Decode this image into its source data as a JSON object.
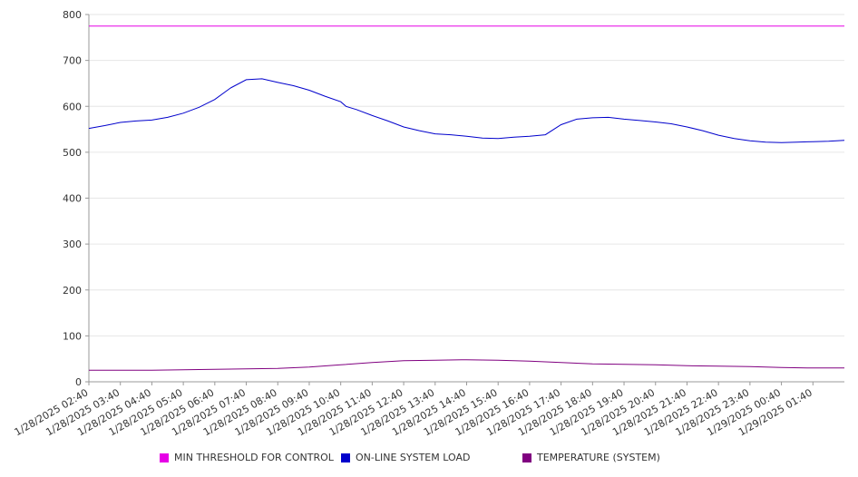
{
  "chart_data": {
    "type": "line",
    "ylim": [
      0,
      800
    ],
    "yticks": [
      0,
      100,
      200,
      300,
      400,
      500,
      600,
      700,
      800
    ],
    "x_start": "1/28/2025 02:40",
    "x_end": "1/29/2025 02:40",
    "xticks": [
      "1/28/2025 02:40",
      "1/28/2025 03:40",
      "1/28/2025 04:40",
      "1/28/2025 05:40",
      "1/28/2025 06:40",
      "1/28/2025 07:40",
      "1/28/2025 08:40",
      "1/28/2025 09:40",
      "1/28/2025 10:40",
      "1/28/2025 11:40",
      "1/28/2025 12:40",
      "1/28/2025 13:40",
      "1/28/2025 14:40",
      "1/28/2025 15:40",
      "1/28/2025 16:40",
      "1/28/2025 17:40",
      "1/28/2025 18:40",
      "1/28/2025 19:40",
      "1/28/2025 20:40",
      "1/28/2025 21:40",
      "1/28/2025 22:40",
      "1/28/2025 23:40",
      "1/29/2025 00:40",
      "1/29/2025 01:40"
    ],
    "grid": true,
    "legend_position": "bottom",
    "series": [
      {
        "name": "MIN THRESHOLD FOR CONTROL",
        "color": "#e600e6",
        "x": [
          "1/28/2025 02:40",
          "1/29/2025 02:40"
        ],
        "y": [
          775,
          775
        ]
      },
      {
        "name": "ON-LINE SYSTEM LOAD",
        "color": "#0000cc",
        "x": [
          "1/28/2025 02:40",
          "1/28/2025 03:10",
          "1/28/2025 03:40",
          "1/28/2025 04:10",
          "1/28/2025 04:40",
          "1/28/2025 05:10",
          "1/28/2025 05:40",
          "1/28/2025 06:10",
          "1/28/2025 06:40",
          "1/28/2025 07:10",
          "1/28/2025 07:40",
          "1/28/2025 08:10",
          "1/28/2025 08:40",
          "1/28/2025 09:10",
          "1/28/2025 09:40",
          "1/28/2025 10:10",
          "1/28/2025 10:40",
          "1/28/2025 10:50",
          "1/28/2025 11:10",
          "1/28/2025 11:40",
          "1/28/2025 12:10",
          "1/28/2025 12:40",
          "1/28/2025 13:10",
          "1/28/2025 13:40",
          "1/28/2025 14:10",
          "1/28/2025 14:40",
          "1/28/2025 15:10",
          "1/28/2025 15:40",
          "1/28/2025 16:10",
          "1/28/2025 16:40",
          "1/28/2025 17:10",
          "1/28/2025 17:40",
          "1/28/2025 18:10",
          "1/28/2025 18:40",
          "1/28/2025 19:10",
          "1/28/2025 19:40",
          "1/28/2025 20:10",
          "1/28/2025 20:40",
          "1/28/2025 21:10",
          "1/28/2025 21:40",
          "1/28/2025 22:10",
          "1/28/2025 22:40",
          "1/28/2025 23:10",
          "1/28/2025 23:40",
          "1/29/2025 00:10",
          "1/29/2025 00:40",
          "1/29/2025 01:10",
          "1/29/2025 01:40",
          "1/29/2025 02:10",
          "1/29/2025 02:40"
        ],
        "y": [
          552,
          558,
          565,
          568,
          570,
          576,
          585,
          598,
          615,
          640,
          658,
          660,
          652,
          645,
          635,
          622,
          610,
          600,
          593,
          580,
          568,
          555,
          547,
          540,
          538,
          535,
          531,
          530,
          533,
          535,
          538,
          560,
          572,
          575,
          576,
          572,
          569,
          566,
          562,
          555,
          547,
          537,
          530,
          525,
          522,
          521,
          522,
          523,
          524,
          526
        ]
      },
      {
        "name": "TEMPERATURE (SYSTEM)",
        "color": "#800080",
        "x": [
          "1/28/2025 02:40",
          "1/28/2025 03:40",
          "1/28/2025 04:40",
          "1/28/2025 05:40",
          "1/28/2025 06:40",
          "1/28/2025 07:40",
          "1/28/2025 08:40",
          "1/28/2025 09:40",
          "1/28/2025 10:40",
          "1/28/2025 11:40",
          "1/28/2025 12:40",
          "1/28/2025 13:40",
          "1/28/2025 14:40",
          "1/28/2025 15:40",
          "1/28/2025 16:40",
          "1/28/2025 17:40",
          "1/28/2025 18:40",
          "1/28/2025 19:40",
          "1/28/2025 20:40",
          "1/28/2025 21:40",
          "1/28/2025 22:40",
          "1/28/2025 23:40",
          "1/29/2025 00:40",
          "1/29/2025 01:40",
          "1/29/2025 02:40"
        ],
        "y": [
          25,
          25,
          25,
          26,
          27,
          28,
          29,
          32,
          37,
          42,
          46,
          47,
          48,
          47,
          45,
          42,
          39,
          38,
          37,
          35,
          34,
          33,
          31,
          30,
          30
        ]
      }
    ]
  }
}
